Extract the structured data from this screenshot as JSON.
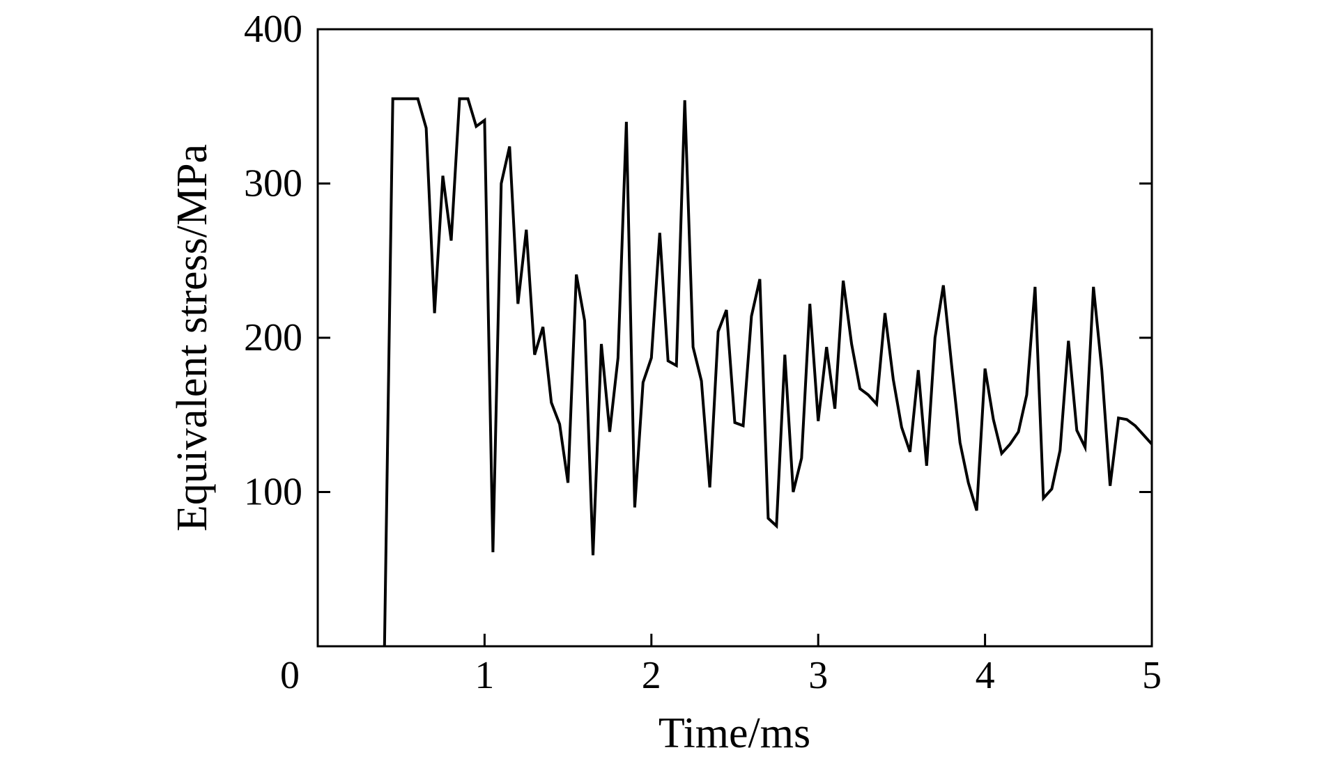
{
  "chart_data": {
    "type": "line",
    "title": "",
    "xlabel": "Time/ms",
    "ylabel": "Equivalent stress/MPa",
    "xlim": [
      0,
      5
    ],
    "ylim": [
      0,
      400
    ],
    "x_ticks": [
      0,
      1,
      2,
      3,
      4,
      5
    ],
    "y_ticks": [
      100,
      200,
      300,
      400
    ],
    "x_tick_labels": [
      "0",
      "1",
      "2",
      "3",
      "4",
      "5"
    ],
    "y_tick_labels": [
      "100",
      "200",
      "300",
      "400"
    ],
    "grid": false,
    "legend": "none",
    "line_color": "#000000",
    "series": [
      {
        "x": [
          0.4,
          0.45,
          0.5,
          0.55,
          0.6,
          0.65,
          0.7,
          0.75,
          0.8,
          0.85,
          0.9,
          0.95,
          1.0,
          1.05,
          1.1,
          1.15,
          1.2,
          1.25,
          1.3,
          1.35,
          1.4,
          1.45,
          1.5,
          1.55,
          1.6,
          1.65,
          1.7,
          1.75,
          1.8,
          1.85,
          1.9,
          1.95,
          2.0,
          2.05,
          2.1,
          2.15,
          2.2,
          2.25,
          2.3,
          2.35,
          2.4,
          2.45,
          2.5,
          2.55,
          2.6,
          2.65,
          2.7,
          2.75,
          2.8,
          2.85,
          2.9,
          2.95,
          3.0,
          3.05,
          3.1,
          3.15,
          3.2,
          3.25,
          3.3,
          3.35,
          3.4,
          3.45,
          3.5,
          3.55,
          3.6,
          3.65,
          3.7,
          3.75,
          3.8,
          3.85,
          3.9,
          3.95,
          4.0,
          4.05,
          4.1,
          4.15,
          4.2,
          4.25,
          4.3,
          4.35,
          4.4,
          4.45,
          4.5,
          4.55,
          4.6,
          4.65,
          4.7,
          4.75,
          4.8,
          4.85,
          4.9,
          4.95,
          5.0
        ],
        "y": [
          0,
          355,
          355,
          355,
          355,
          336,
          216,
          305,
          263,
          355,
          355,
          337,
          341,
          61,
          300,
          324,
          222,
          270,
          189,
          207,
          158,
          144,
          106,
          241,
          211,
          59,
          196,
          139,
          187,
          340,
          90,
          171,
          187,
          268,
          185,
          182,
          354,
          194,
          172,
          103,
          204,
          218,
          145,
          143,
          214,
          238,
          83,
          78,
          189,
          100,
          122,
          222,
          146,
          194,
          154,
          237,
          196,
          167,
          163,
          157,
          216,
          173,
          142,
          126,
          179,
          117,
          200,
          234,
          182,
          132,
          106,
          88,
          180,
          147,
          125,
          131,
          139,
          163,
          233,
          96,
          102,
          127,
          198,
          140,
          129,
          233,
          179,
          104,
          148,
          147,
          143,
          137,
          131
        ]
      }
    ]
  }
}
